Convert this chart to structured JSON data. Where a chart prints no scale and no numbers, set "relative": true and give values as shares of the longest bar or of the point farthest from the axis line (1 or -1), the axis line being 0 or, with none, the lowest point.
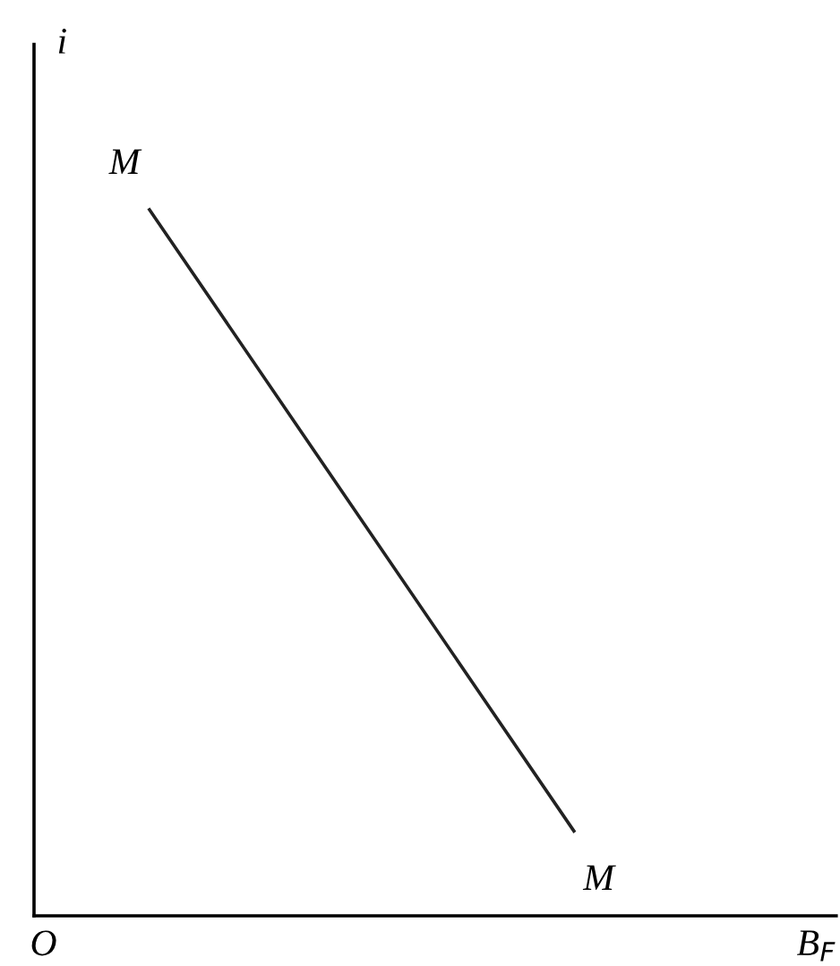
{
  "chart_data": {
    "type": "line",
    "relative": true,
    "xlabel": "B$_{F}$",
    "ylabel": "i",
    "categories": [
      null,
      null
    ],
    "series": [
      {
        "color": "#222222",
        "values": [
          1,
          0.12
        ]
      }
    ],
    "annotations": [
      "M",
      "M",
      "O"
    ],
    "marker": "none",
    "line_style": "solid",
    "grid": false,
    "legend": false
  }
}
